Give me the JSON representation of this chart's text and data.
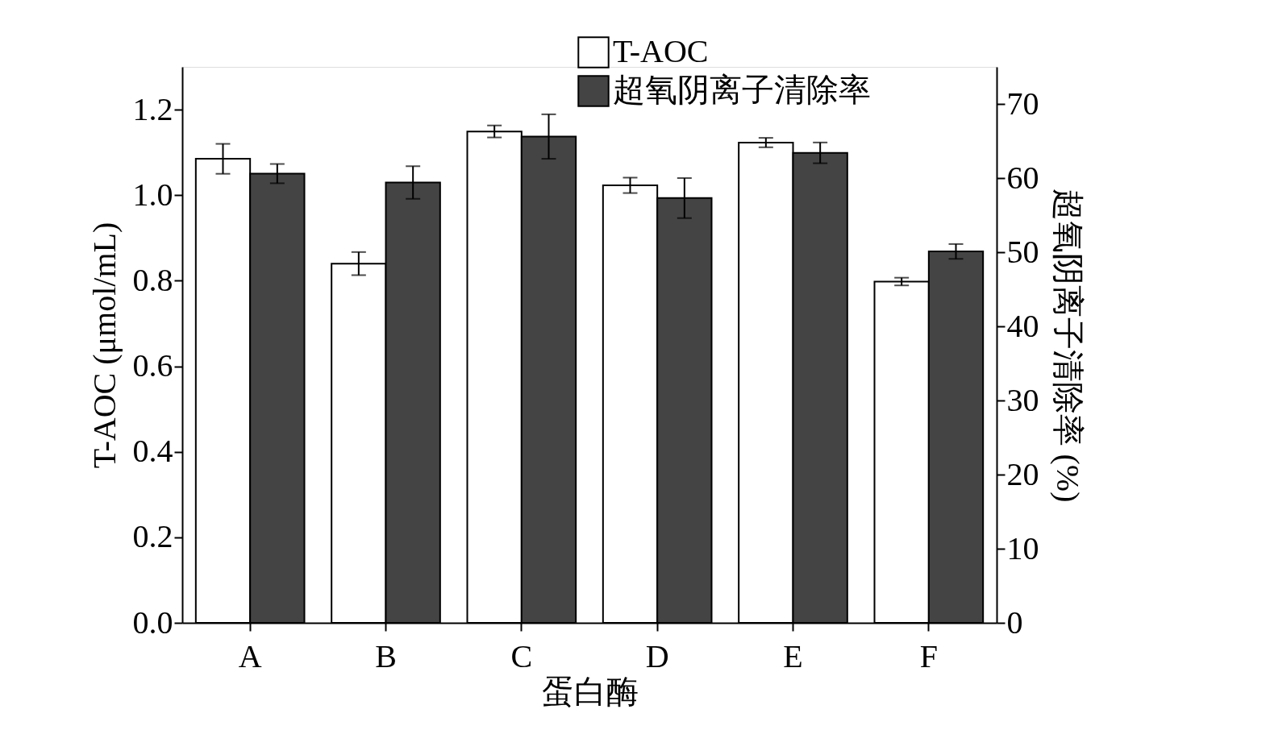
{
  "chart_data": {
    "type": "bar",
    "xlabel": "蛋白酶",
    "ylabel": "T-AOC (μmol/mL)",
    "y2label": "超氧阴离子清除率 (%)",
    "categories": [
      "A",
      "B",
      "C",
      "D",
      "E",
      "F"
    ],
    "series": [
      {
        "name": "T-AOC",
        "color": "#ffffff",
        "values": [
          1.085,
          0.84,
          1.149,
          1.023,
          1.123,
          0.798
        ],
        "errors": [
          0.035,
          0.027,
          0.014,
          0.018,
          0.011,
          0.009
        ]
      },
      {
        "name": "超氧阴离子清除率",
        "color": "#444444",
        "axis": "y2",
        "values": [
          60.6,
          59.4,
          65.6,
          57.3,
          63.4,
          50.1
        ],
        "errors": [
          1.3,
          2.2,
          3.0,
          2.7,
          1.4,
          1.0
        ]
      }
    ],
    "ylim": [
      0,
      1.3
    ],
    "yticks": [
      {
        "value": 0,
        "label": "0.0"
      },
      0.2,
      0.4,
      0.6,
      0.8,
      {
        "value": 1,
        "label": "1.0"
      },
      1.2
    ],
    "y2lim": [
      0,
      75
    ],
    "y2ticks": [
      0,
      10,
      20,
      30,
      40,
      50,
      60,
      70
    ],
    "grid": false,
    "legend": "top right"
  }
}
